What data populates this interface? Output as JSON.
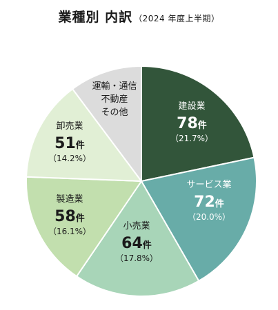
{
  "title": {
    "main": "業種別 内訳",
    "sub": "（2024 年度上半期）"
  },
  "chart_data": {
    "type": "pie",
    "unit": "件",
    "slices": [
      {
        "name_lines": [
          "建設業"
        ],
        "count": "78",
        "percent": "（21.7%）",
        "value": 21.7,
        "color": "#32553a",
        "text_color": "#ffffff"
      },
      {
        "name_lines": [
          "サービス業"
        ],
        "count": "72",
        "percent": "（20.0%）",
        "value": 20.0,
        "color": "#68aca8",
        "text_color": "#ffffff"
      },
      {
        "name_lines": [
          "小売業"
        ],
        "count": "64",
        "percent": "（17.8%）",
        "value": 17.8,
        "color": "#a8d5b8",
        "text_color": "#1a1a1a"
      },
      {
        "name_lines": [
          "製造業"
        ],
        "count": "58",
        "percent": "（16.1%）",
        "value": 16.1,
        "color": "#c2dfae",
        "text_color": "#1a1a1a"
      },
      {
        "name_lines": [
          "卸売業"
        ],
        "count": "51",
        "percent": "（14.2%）",
        "value": 14.2,
        "color": "#e1efd5",
        "text_color": "#1a1a1a"
      },
      {
        "name_lines": [
          "運輸・通信",
          "不動産",
          "その他"
        ],
        "count": "",
        "percent": "",
        "value": 10.2,
        "color": "#dcdcdc",
        "text_color": "#1a1a1a"
      }
    ]
  }
}
